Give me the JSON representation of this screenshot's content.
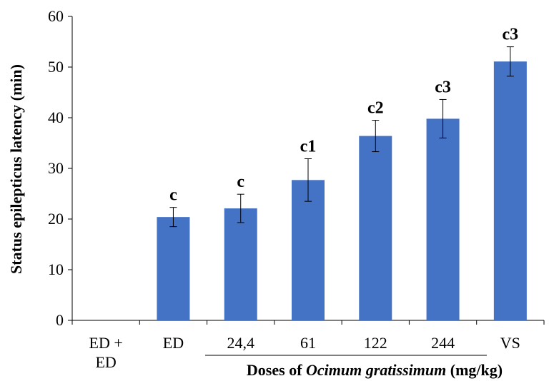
{
  "chart_data": {
    "type": "bar",
    "categories": [
      [
        "ED +",
        "ED"
      ],
      [
        "ED"
      ],
      [
        "24,4"
      ],
      [
        "61"
      ],
      [
        "122"
      ],
      [
        "244"
      ],
      [
        "VS"
      ]
    ],
    "values": [
      0,
      20.4,
      22.1,
      27.7,
      36.4,
      39.8,
      51.1
    ],
    "errors": [
      0,
      1.9,
      2.8,
      4.2,
      3.1,
      3.8,
      2.9
    ],
    "annotations": [
      "",
      "c",
      "c",
      "c1",
      "c2",
      "c3",
      "c3"
    ],
    "ylabel": "Status epilepticus latency (min)",
    "xlabel": {
      "prefix": "Doses of ",
      "italic": "Ocimum gratissimum",
      "suffix": " (mg/kg)"
    },
    "ylim": [
      0,
      60
    ],
    "yticks": [
      0,
      10,
      20,
      30,
      40,
      50,
      60
    ],
    "bar_color": "#4472c4",
    "grid": false
  }
}
